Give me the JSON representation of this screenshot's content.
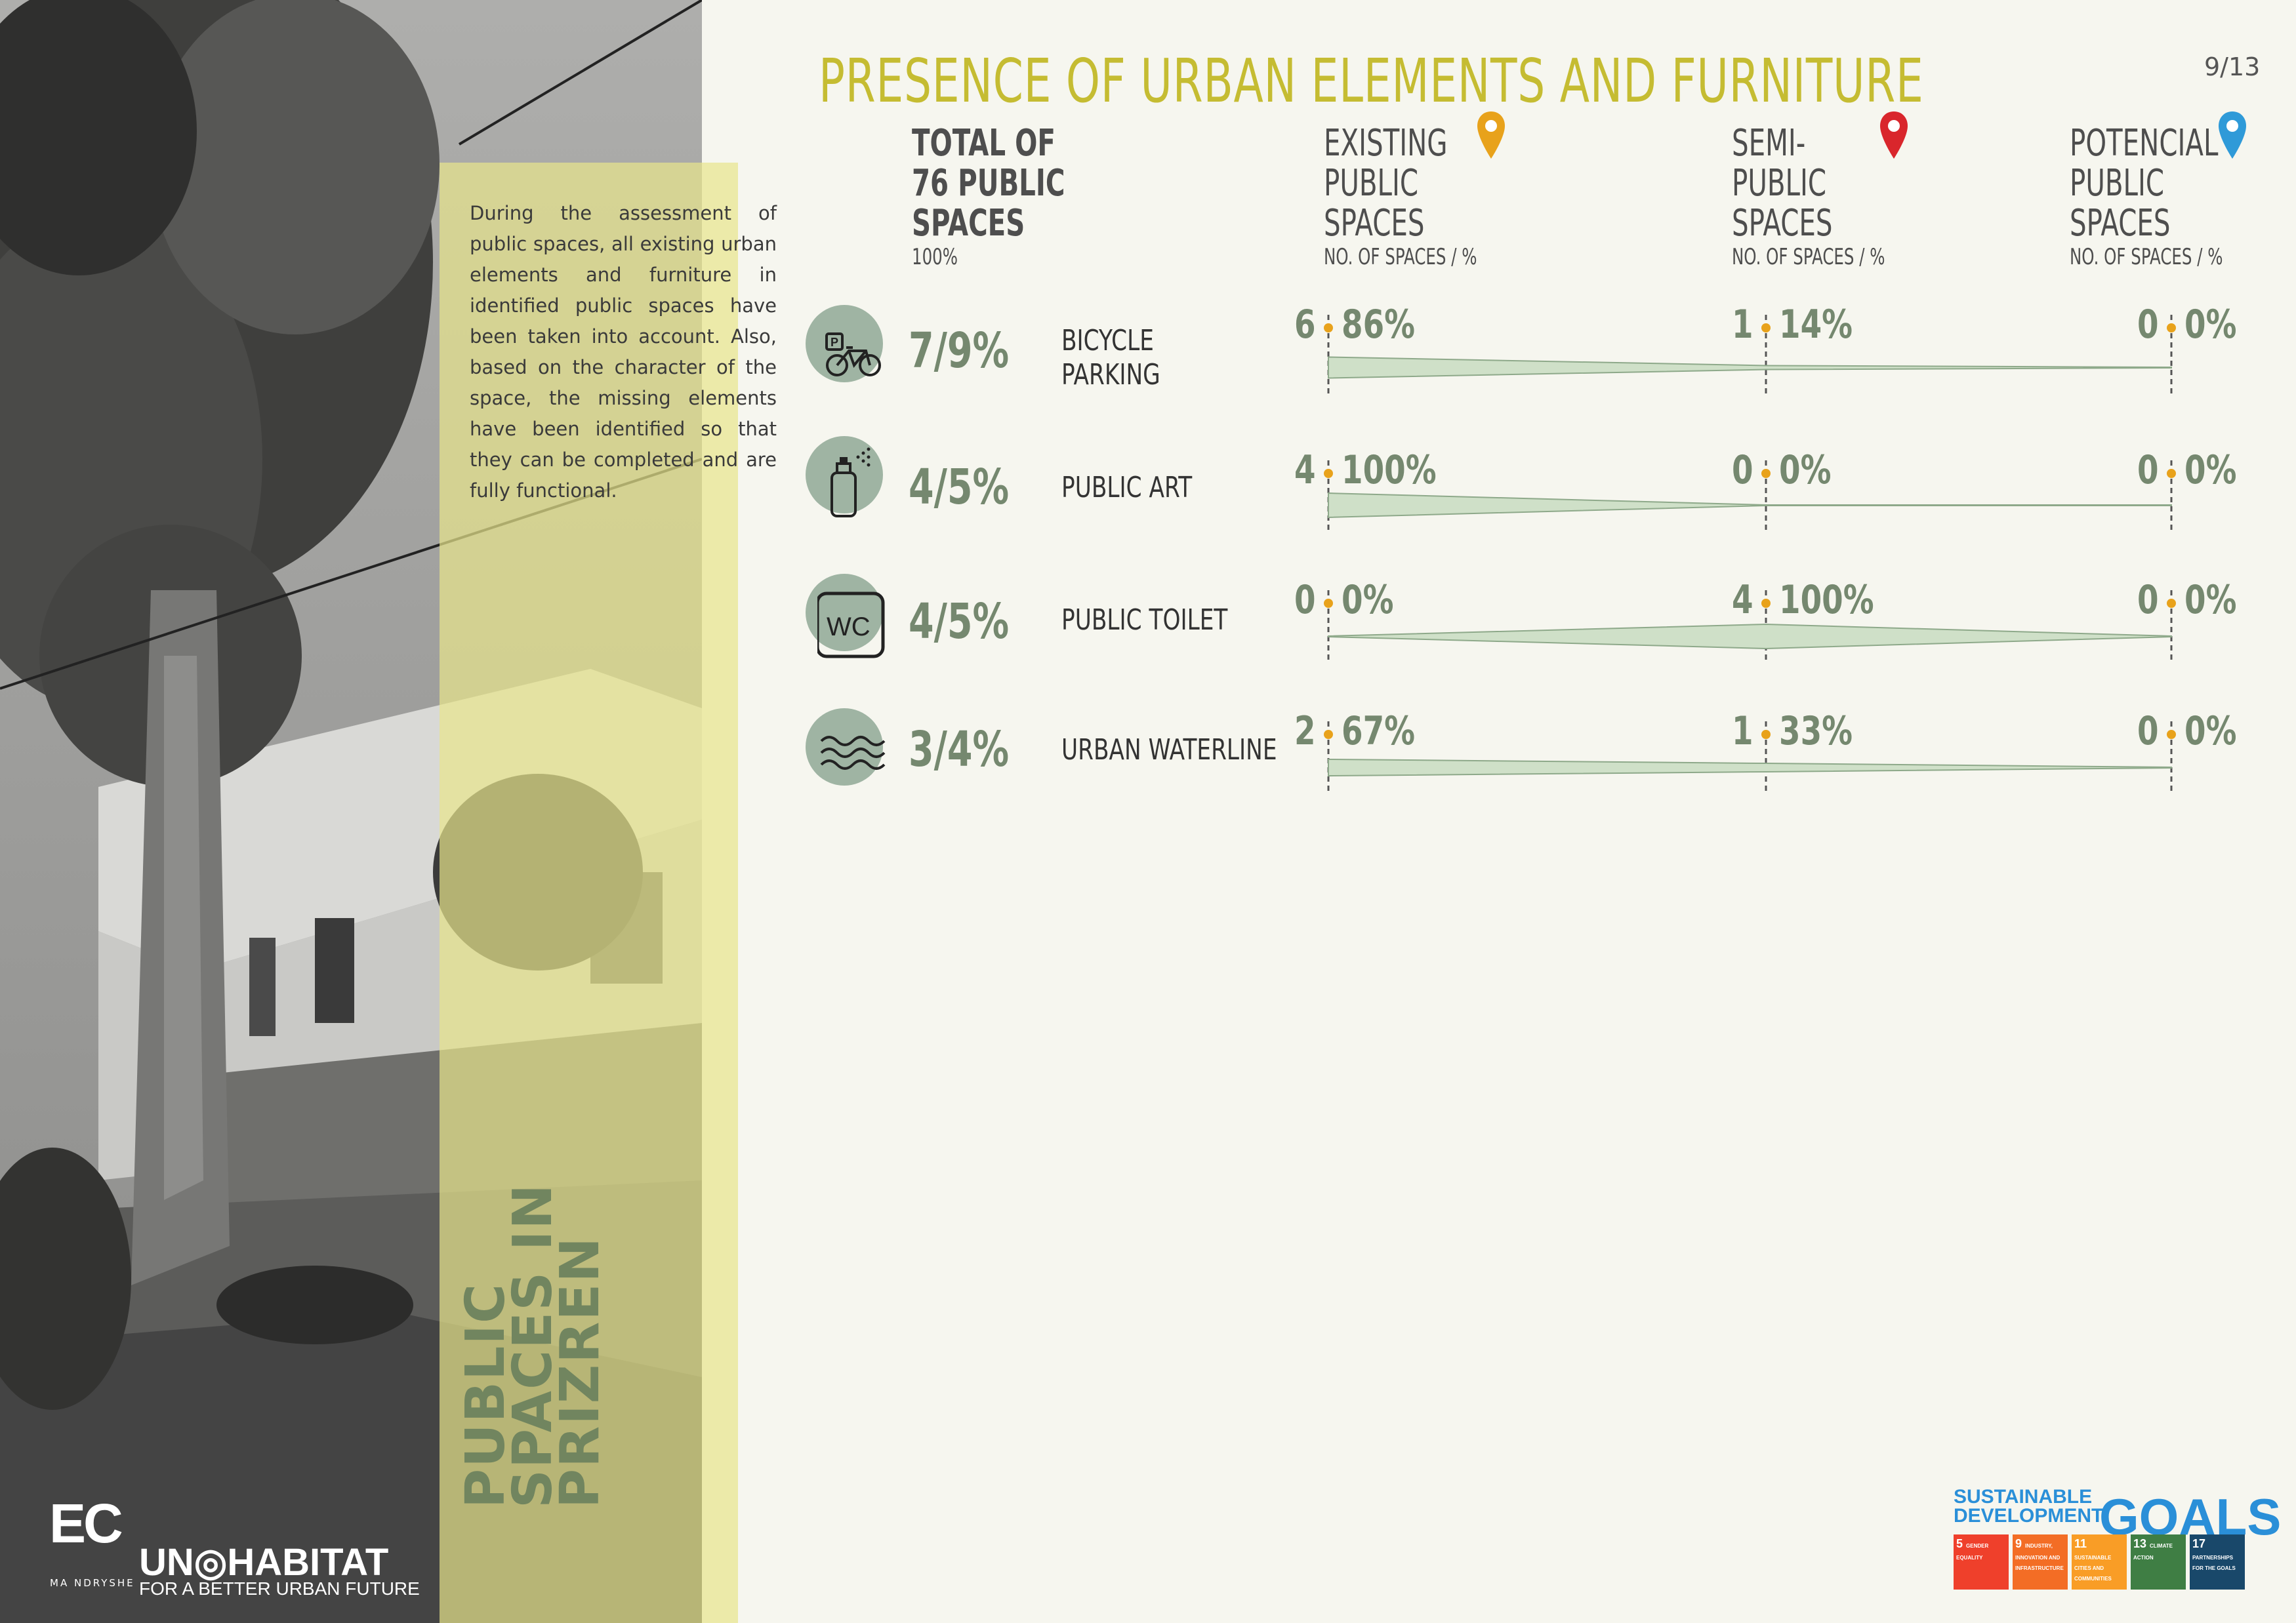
{
  "page": {
    "title": "PRESENCE OF URBAN ELEMENTS AND FURNITURE",
    "page_number": "9/13"
  },
  "sidebar": {
    "intro_text": "During the assessment of public spaces, all existing urban elements and furniture in identified public spaces have been taken into account. Also, based on the character of the space, the missing elements have been identified so that they can be completed and are fully functional.",
    "vertical_title_lines": [
      "PUBLIC",
      "SPACES IN",
      "PRIZREN"
    ],
    "logo_ec": "EC",
    "logo_ec_sub": "MA NDRYSHE",
    "logo_un": "UN◎HABITAT",
    "logo_un_sub": "FOR A BETTER URBAN FUTURE"
  },
  "columns": {
    "total": {
      "lines": [
        "TOTAL OF",
        "76 PUBLIC",
        "SPACES"
      ],
      "sub": "100%"
    },
    "existing": {
      "lines": [
        "EXISTING",
        "PUBLIC",
        "SPACES"
      ],
      "sub": "NO. OF SPACES / %",
      "pin_color": "#e8a21b"
    },
    "semi": {
      "lines": [
        "SEMI-",
        "PUBLIC",
        "SPACES"
      ],
      "sub": "NO. OF SPACES / %",
      "pin_color": "#d9262c"
    },
    "potential": {
      "lines": [
        "POTENCIAL",
        "PUBLIC",
        "SPACES"
      ],
      "sub": "NO. OF SPACES / %",
      "pin_color": "#2f9ad8"
    }
  },
  "rows": [
    {
      "icon": "bicycle-parking-icon",
      "ratio": "7/9%",
      "label_lines": [
        "BICYCLE",
        "PARKING"
      ],
      "existing": {
        "count": "6",
        "pct": "86%"
      },
      "semi": {
        "count": "1",
        "pct": "14%"
      },
      "potential": {
        "count": "0",
        "pct": "0%"
      }
    },
    {
      "icon": "spray-can-icon",
      "ratio": "4/5%",
      "label_lines": [
        "PUBLIC ART"
      ],
      "existing": {
        "count": "4",
        "pct": "100%"
      },
      "semi": {
        "count": "0",
        "pct": "0%"
      },
      "potential": {
        "count": "0",
        "pct": "0%"
      }
    },
    {
      "icon": "wc-icon",
      "ratio": "4/5%",
      "label_lines": [
        "PUBLIC TOILET"
      ],
      "existing": {
        "count": "0",
        "pct": "0%"
      },
      "semi": {
        "count": "4",
        "pct": "100%"
      },
      "potential": {
        "count": "0",
        "pct": "0%"
      }
    },
    {
      "icon": "waves-icon",
      "ratio": "3/4%",
      "label_lines": [
        "URBAN WATERLINE"
      ],
      "existing": {
        "count": "2",
        "pct": "67%"
      },
      "semi": {
        "count": "1",
        "pct": "33%"
      },
      "potential": {
        "count": "0",
        "pct": "0%"
      }
    }
  ],
  "sdg": {
    "title_lines": [
      "SUSTAINABLE",
      "DEVELOPMENT"
    ],
    "goals_word": "GOALS",
    "goals": [
      {
        "num": "5",
        "label": "GENDER EQUALITY",
        "color": "#ef402b"
      },
      {
        "num": "9",
        "label": "INDUSTRY, INNOVATION AND INFRASTRUCTURE",
        "color": "#f36d25"
      },
      {
        "num": "11",
        "label": "SUSTAINABLE CITIES AND COMMUNITIES",
        "color": "#f99d26"
      },
      {
        "num": "13",
        "label": "CLIMATE ACTION",
        "color": "#3f7e44"
      },
      {
        "num": "17",
        "label": "PARTNERSHIPS FOR THE GOALS",
        "color": "#19486a"
      }
    ]
  }
}
